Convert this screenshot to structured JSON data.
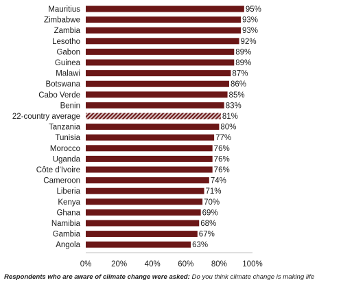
{
  "chart_data": {
    "type": "bar",
    "orientation": "horizontal",
    "categories": [
      "Mauritius",
      "Zimbabwe",
      "Zambia",
      "Lesotho",
      "Gabon",
      "Guinea",
      "Malawi",
      "Botswana",
      "Cabo Verde",
      "Benin",
      "22-country average",
      "Tanzania",
      "Tunisia",
      "Morocco",
      "Uganda",
      "Côte d'Ivoire",
      "Cameroon",
      "Liberia",
      "Kenya",
      "Ghana",
      "Namibia",
      "Gambia",
      "Angola"
    ],
    "values": [
      95,
      93,
      93,
      92,
      89,
      89,
      87,
      86,
      85,
      83,
      81,
      80,
      77,
      76,
      76,
      76,
      74,
      71,
      70,
      69,
      68,
      67,
      63
    ],
    "value_labels": [
      "95%",
      "93%",
      "93%",
      "92%",
      "89%",
      "89%",
      "87%",
      "86%",
      "85%",
      "83%",
      "81%",
      "80%",
      "77%",
      "76%",
      "76%",
      "76%",
      "74%",
      "71%",
      "70%",
      "69%",
      "68%",
      "67%",
      "63%"
    ],
    "highlight_category": "22-country average",
    "xlim": [
      0,
      100
    ],
    "xticks": [
      0,
      20,
      40,
      60,
      80,
      100
    ],
    "xtick_labels": [
      "0%",
      "20%",
      "40%",
      "60%",
      "80%",
      "100%"
    ],
    "grid": false,
    "legend": "none",
    "colors": {
      "bar": "#6b1717",
      "highlight_stripe_dark": "#6b1717",
      "highlight_stripe_light": "#d9c4c4",
      "axis": "#bfbfbf"
    }
  },
  "footnote": {
    "bold_part": "Respondents who are aware of climate change were asked:",
    "italic_part": " Do you think climate change is making life"
  }
}
